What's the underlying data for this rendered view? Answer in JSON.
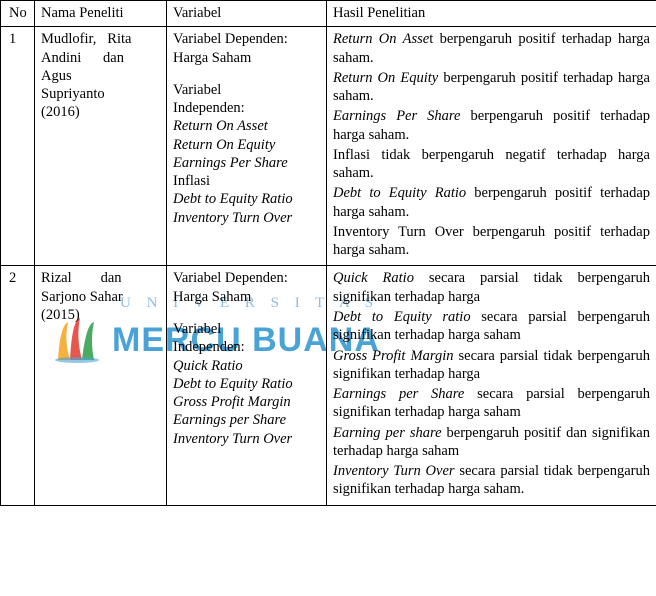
{
  "watermark": {
    "top_text": "U N I V E R S I T A S",
    "main_text": "MERCU BUANA",
    "colors": {
      "light": "#8fbfe0",
      "main": "#4aa3d6",
      "flame1": "#f6a21b",
      "flame2": "#e23a2e",
      "flame3": "#2e9b47"
    }
  },
  "headers": {
    "no": "No",
    "nama": "Nama Peneliti",
    "variabel": "Variabel",
    "hasil": "Hasil Penelitian"
  },
  "rows": [
    {
      "no": "1",
      "nama_lines": [
        "Mudlofir,   Rita",
        "Andini      dan",
        "Agus",
        "Supriyanto",
        "(2016)"
      ],
      "var_dep_label": "Variabel Dependen:",
      "var_dep_value": "Harga Saham",
      "var_indep_label": "Variabel",
      "var_indep_label2": "Independen:",
      "var_indep_items": [
        {
          "text": "Return On Asset",
          "italic": true
        },
        {
          "text": "Return On Equity",
          "italic": true
        },
        {
          "text": "Earnings Per Share",
          "italic": true
        },
        {
          "text": "Inflasi",
          "italic": false
        },
        {
          "text": "Debt to Equity Ratio",
          "italic": true
        },
        {
          "text": "Inventory Turn Over",
          "italic": true
        }
      ],
      "hasil": [
        {
          "pre_i": "Return On Asse",
          "post": "t berpengaruh positif terhadap harga saham."
        },
        {
          "pre_i": "Return On Equity",
          "post": " berpengaruh positif terhadap harga saham."
        },
        {
          "pre_i": "Earnings Per Share",
          "post": " berpengaruh positif terhadap harga saham."
        },
        {
          "pre_i": "",
          "post": "Inflasi tidak berpengaruh negatif terhadap harga saham."
        },
        {
          "pre_i": "Debt to Equity Ratio",
          "post": " berpengaruh positif terhadap harga saham."
        },
        {
          "pre_i": "",
          "post": "Inventory Turn Over berpengaruh positif terhadap harga saham."
        }
      ]
    },
    {
      "no": "2",
      "nama_lines": [
        "Rizal        dan",
        "Sarjono Sahar",
        "(2015)"
      ],
      "var_dep_label": "Variabel Dependen:",
      "var_dep_value": "Harga Saham",
      "var_indep_label": "Variabel",
      "var_indep_label2": "Independen:",
      "var_indep_items": [
        {
          "text": "Quick Ratio",
          "italic": true
        },
        {
          "text": "Debt to Equity Ratio",
          "italic": true
        },
        {
          "text": "Gross Profit Margin",
          "italic": true
        },
        {
          "text": "Earnings per Share",
          "italic": true
        },
        {
          "text": "Inventory Turn Over",
          "italic": true
        }
      ],
      "hasil": [
        {
          "pre_i": "Quick Ratio",
          "post": " secara parsial tidak berpengaruh signifikan terhadap harga"
        },
        {
          "pre_i": "Debt to Equity ratio",
          "post": " secara parsial berpengaruh signifikan terhadap harga saham"
        },
        {
          "pre_i": "Gross Profit Margin",
          "post": " secara parsial tidak berpengaruh signifikan terhadap harga"
        },
        {
          "pre_i": "Earnings per Share",
          "post": " secara parsial berpengaruh signifikan terhadap harga saham"
        },
        {
          "pre_i": "Earning per share",
          "post": " berpengaruh positif dan signifikan terhadap harga saham"
        },
        {
          "pre_i": "Inventory Turn Over",
          "post": "  secara parsial tidak berpengaruh signifikan terhadap harga saham."
        }
      ]
    }
  ]
}
